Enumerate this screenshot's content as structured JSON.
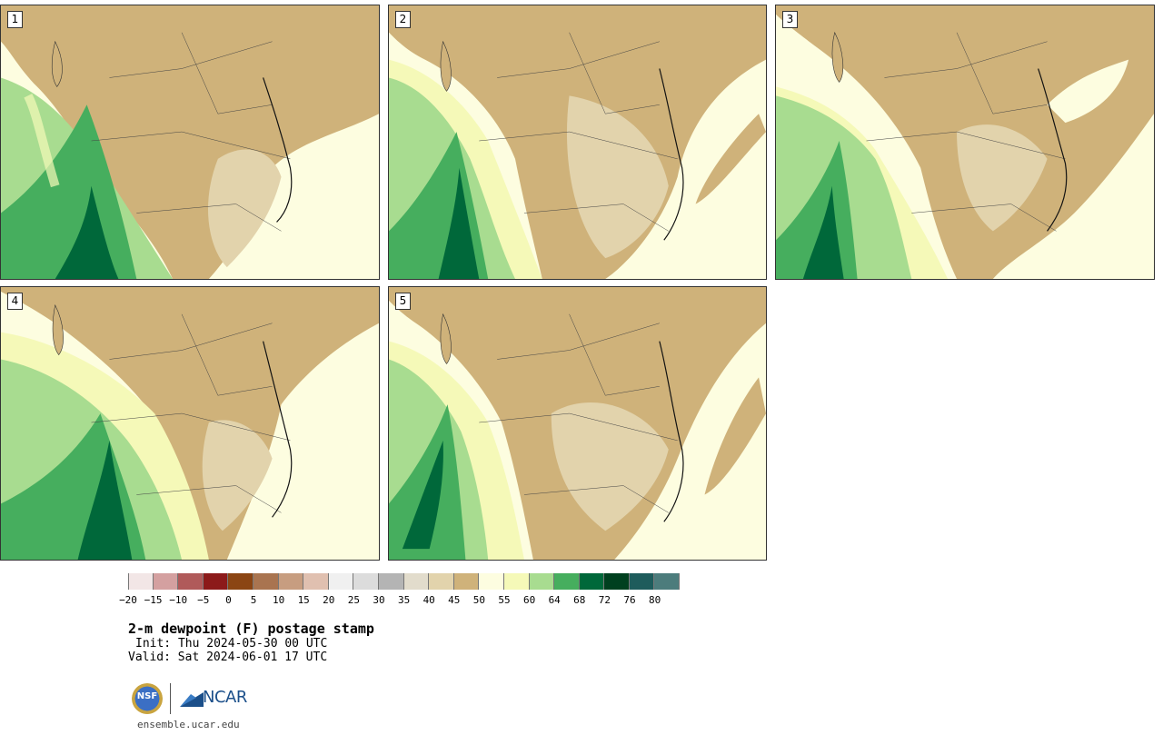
{
  "panels": [
    {
      "label": "1"
    },
    {
      "label": "2"
    },
    {
      "label": "3"
    },
    {
      "label": "4"
    },
    {
      "label": "5"
    }
  ],
  "colorbar": {
    "colors": [
      "#f2e6e6",
      "#d4a0a0",
      "#b05a5a",
      "#8c1a1a",
      "#8b4513",
      "#a97450",
      "#c79d80",
      "#e0c0b0",
      "#f0f0f0",
      "#dcdcdc",
      "#b4b4b4",
      "#e2dccc",
      "#e2d3ac",
      "#cfb27a",
      "#fdfde0",
      "#f5f9b8",
      "#a8dc90",
      "#46ae5e",
      "#00683a",
      "#00401f",
      "#1e5c5c",
      "#4c7c7c"
    ],
    "ticks": [
      "−20",
      "−15",
      "−10",
      "−5",
      "0",
      "5",
      "10",
      "15",
      "20",
      "25",
      "30",
      "35",
      "40",
      "45",
      "50",
      "55",
      "60",
      "64",
      "68",
      "72",
      "76",
      "80"
    ]
  },
  "title": "2-m dewpoint (F) postage stamp",
  "init": "Init: Thu 2024-05-30 00 UTC",
  "valid": "Valid: Sat 2024-06-01 17 UTC",
  "logos": {
    "nsf": "NSF",
    "ncar": "NCAR"
  },
  "url": "ensemble.ucar.edu"
}
